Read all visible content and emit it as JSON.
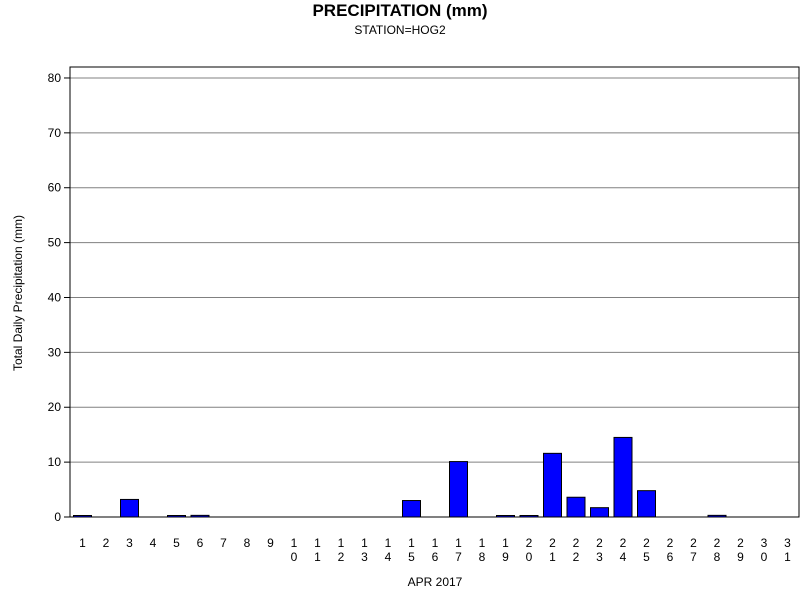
{
  "chart_data": {
    "type": "bar",
    "title": "PRECIPITATION (mm)",
    "subtitle": "STATION=HOG2",
    "xlabel": "APR 2017",
    "ylabel": "Total Daily Precipitation (mm)",
    "ylim": [
      0,
      82
    ],
    "yticks": [
      0,
      10,
      20,
      30,
      40,
      50,
      60,
      70,
      80
    ],
    "grid": true,
    "bar_color": "#0000ff",
    "categories": [
      "1",
      "2",
      "3",
      "4",
      "5",
      "6",
      "7",
      "8",
      "9",
      "10",
      "11",
      "12",
      "13",
      "14",
      "15",
      "16",
      "17",
      "18",
      "19",
      "20",
      "21",
      "22",
      "23",
      "24",
      "25",
      "26",
      "27",
      "28",
      "29",
      "30",
      "31"
    ],
    "values": [
      0.1,
      0,
      3.2,
      0,
      0.1,
      0.3,
      0,
      0,
      0,
      0,
      0,
      0,
      0,
      0,
      3.0,
      0,
      10.1,
      0,
      0.1,
      0.1,
      11.6,
      3.6,
      1.7,
      14.5,
      4.8,
      0,
      0,
      0.3,
      0,
      0,
      0
    ]
  }
}
